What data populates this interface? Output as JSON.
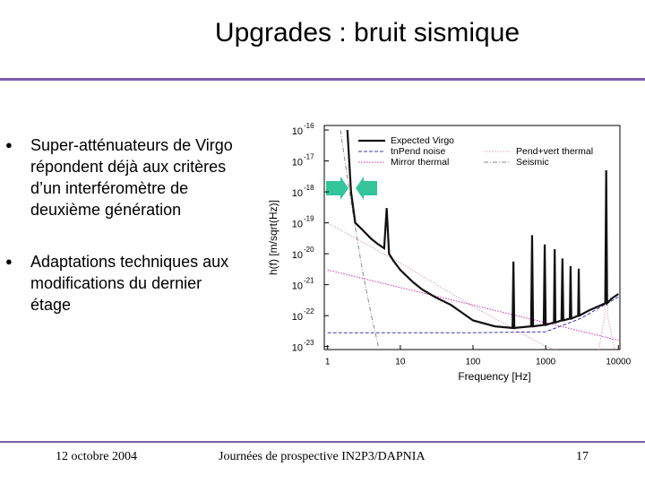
{
  "title": "Upgrades : bruit sismique",
  "bullets": [
    [
      "Super-atténuateurs de Virgo",
      "répondent déjà aux critères",
      "d’un interféromètre de",
      "deuxième génération"
    ],
    [
      "Adaptations techniques aux",
      "modifications du dernier",
      "étage"
    ]
  ],
  "footer": {
    "date": "12 octobre 2004",
    "event": "Journées de prospective IN2P3/DAPNIA",
    "page": "17"
  },
  "chart_data": {
    "type": "line",
    "log_x": true,
    "log_y": true,
    "x_label": "Frequency [Hz]",
    "y_label": "h(f) [m/sqrt(Hz)]",
    "xlim": [
      0.9,
      10500
    ],
    "xticks": [
      1,
      10,
      100,
      1000,
      10000
    ],
    "ylim": [
      8e-24,
      1.4e-16
    ],
    "yticks": [
      {
        "value": 1e-16,
        "label": "10",
        "exponent": "-16"
      },
      {
        "value": 1e-17,
        "label": "10",
        "exponent": "-17"
      },
      {
        "value": 1e-18,
        "label": "10",
        "exponent": "-18"
      },
      {
        "value": 1e-19,
        "label": "10",
        "exponent": "-19"
      },
      {
        "value": 1e-20,
        "label": "10",
        "exponent": "-20"
      },
      {
        "value": 1e-21,
        "label": "10",
        "exponent": "-21"
      },
      {
        "value": 1e-22,
        "label": "10",
        "exponent": "-22"
      },
      {
        "value": 1e-23,
        "label": "10",
        "exponent": "-23"
      }
    ],
    "series": [
      {
        "name": "Expected Virgo",
        "color": "#111111",
        "dash": "solid",
        "x": [
          1.87,
          2.1,
          2.4,
          3,
          4,
          5,
          6,
          6.5,
          7,
          8,
          10,
          15,
          20,
          30,
          50,
          100,
          200,
          350,
          360,
          370,
          630,
          650,
          670,
          940,
          970,
          1000,
          1300,
          1330,
          1360,
          1650,
          1700,
          1750,
          2150,
          2200,
          2250,
          2800,
          2850,
          2900,
          4000,
          6600,
          6800,
          7000,
          8000,
          10000
        ],
        "values": [
          1e-16,
          1e-18,
          1e-19,
          6e-20,
          3e-20,
          2e-20,
          1.5e-20,
          3e-19,
          1e-20,
          6e-21,
          3e-21,
          1.2e-21,
          7e-22,
          4e-22,
          2.2e-22,
          7e-23,
          4.5e-23,
          4e-23,
          5.6e-21,
          4e-23,
          4.5e-23,
          4e-20,
          4.5e-23,
          5e-23,
          2e-20,
          5e-23,
          6e-23,
          1.4e-20,
          6e-23,
          7e-23,
          7e-21,
          7e-23,
          8e-23,
          4e-21,
          8e-23,
          1e-22,
          3.3e-21,
          1e-22,
          1.5e-22,
          2.5e-22,
          5e-18,
          2.5e-22,
          3.5e-22,
          5e-22
        ]
      },
      {
        "name": "tnPend noise",
        "color": "#3b3bb0",
        "dash": "dashed",
        "x": [
          1,
          100,
          1000,
          3000,
          10000
        ],
        "values": [
          2.8e-23,
          2.8e-23,
          3e-23,
          8e-23,
          4e-22
        ]
      },
      {
        "name": "Mirror thermal",
        "color": "#d62fb0",
        "dash": "dotted",
        "x": [
          1,
          10000
        ],
        "values": [
          3e-21,
          1.6e-23
        ]
      },
      {
        "name": "Pend+vert thermal",
        "color": "#d9a3c4",
        "dash": "dotted",
        "x": [
          1,
          10,
          100,
          1000,
          5000,
          6500,
          6800,
          7100,
          10000
        ],
        "values": [
          1e-19,
          5e-21,
          2e-22,
          1e-23,
          3e-24,
          1e-22,
          5e-18,
          1e-22,
          2e-24
        ]
      },
      {
        "name": "Seismic",
        "color": "#8a8a8a",
        "dash": "dashdot",
        "x": [
          1.5,
          2,
          3,
          4,
          5
        ],
        "values": [
          1e-16,
          1e-18,
          3e-21,
          1e-22,
          1e-23
        ]
      }
    ]
  }
}
